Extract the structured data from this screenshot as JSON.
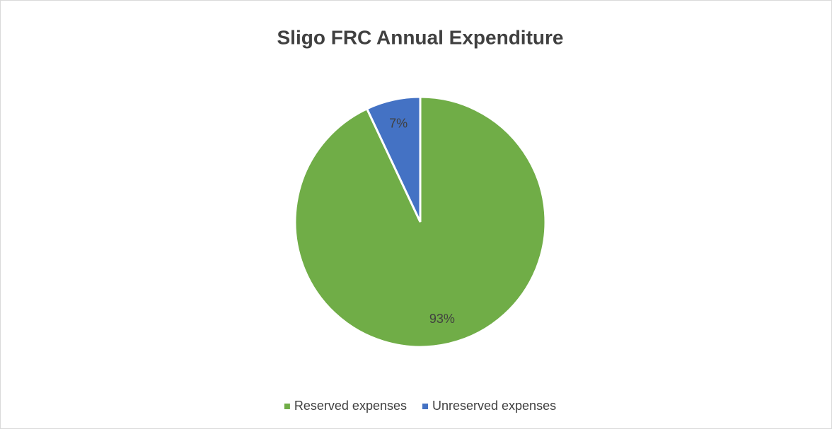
{
  "chart_data": {
    "type": "pie",
    "title": "Sligo FRC Annual Expenditure",
    "categories": [
      "Reserved expenses",
      "Unreserved expenses"
    ],
    "values": [
      93,
      7
    ],
    "value_labels": [
      "93%",
      "7%"
    ],
    "colors": [
      "#70ad47",
      "#4472c4"
    ],
    "legend": "bottom"
  }
}
